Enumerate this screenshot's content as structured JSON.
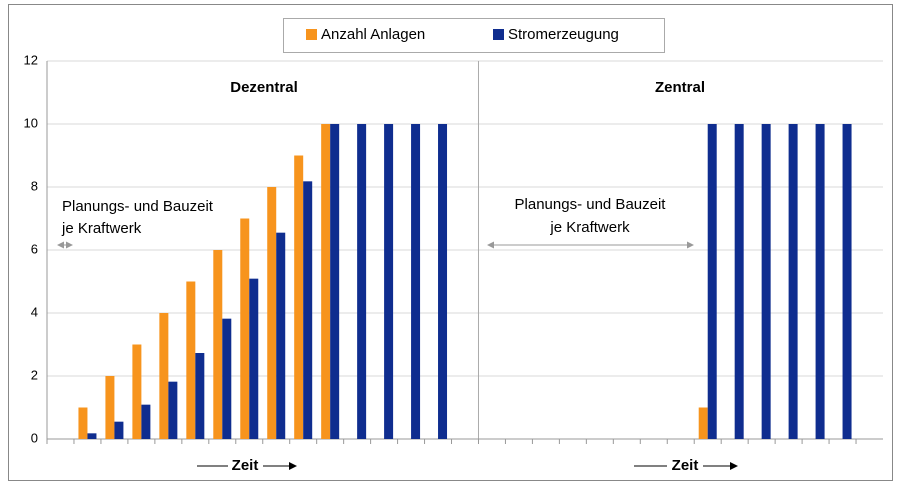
{
  "chart_data": {
    "type": "bar",
    "categories": [
      null,
      null,
      null,
      null,
      null,
      null,
      null,
      null,
      null,
      null,
      null,
      null,
      null,
      null,
      null,
      null,
      null,
      null,
      null,
      null,
      null,
      null,
      null,
      null,
      null,
      null,
      null,
      null,
      null,
      null,
      null
    ],
    "series": [
      {
        "name": "Anzahl Anlagen",
        "color": "#f7941d",
        "values": [
          null,
          1,
          2,
          3,
          4,
          5,
          6,
          7,
          8,
          9,
          10,
          null,
          null,
          null,
          null,
          null,
          null,
          null,
          null,
          null,
          null,
          null,
          null,
          null,
          1,
          null,
          null,
          null,
          null,
          null,
          null
        ]
      },
      {
        "name": "Stromerzeugung",
        "color": "#0f2d8f",
        "values": [
          null,
          0.18,
          0.55,
          1.09,
          1.82,
          2.73,
          3.82,
          5.09,
          6.55,
          8.18,
          10,
          10,
          10,
          10,
          10,
          null,
          null,
          null,
          null,
          null,
          null,
          null,
          null,
          null,
          10,
          10,
          10,
          10,
          10,
          10,
          null
        ]
      }
    ],
    "ylim": [
      0,
      12
    ],
    "yticks": [
      0,
      2,
      4,
      6,
      8,
      10,
      12
    ],
    "grid": true,
    "legend": "top",
    "panels": [
      {
        "title": "Dezentral",
        "note": [
          "Planungs- und Bauzeit",
          "je Kraftwerk"
        ],
        "axis_label": "Zeit"
      },
      {
        "title": "Zentral",
        "note": [
          "Planungs- und Bauzeit",
          "je Kraftwerk"
        ],
        "axis_label": "Zeit"
      }
    ]
  }
}
